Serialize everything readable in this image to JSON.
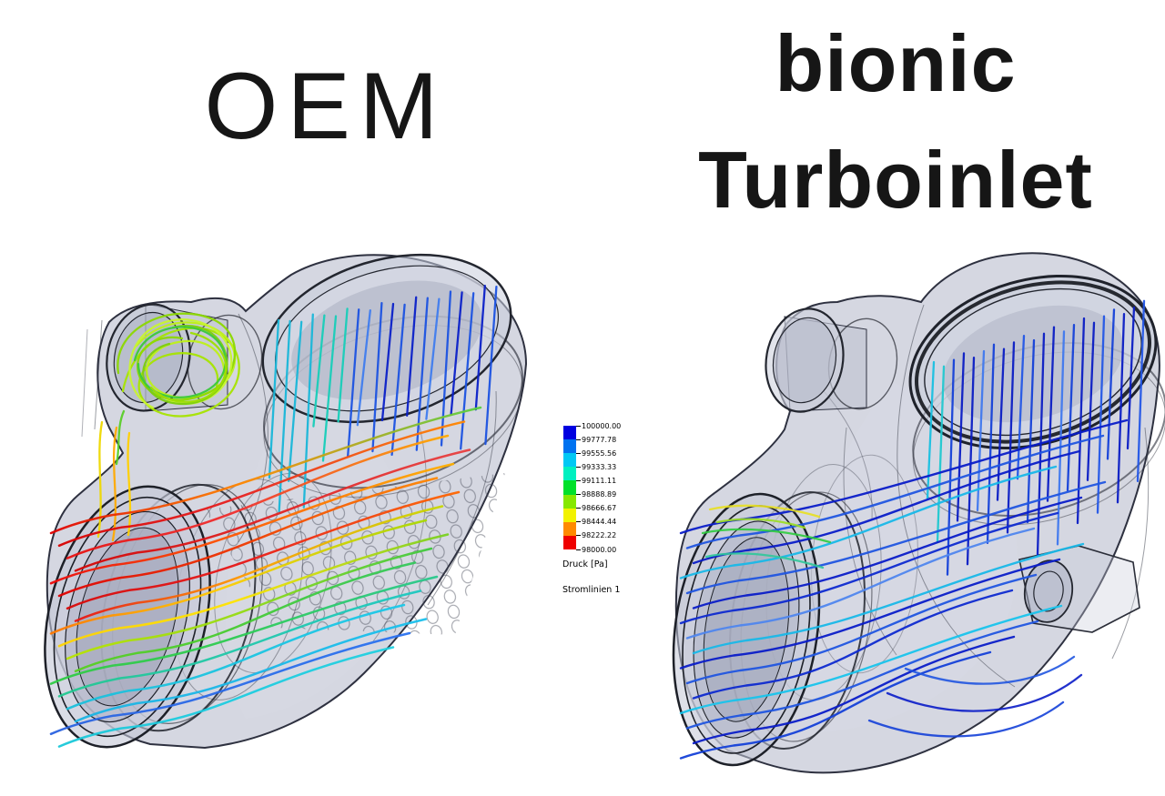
{
  "figure": {
    "background": "#ffffff"
  },
  "left_panel": {
    "title": "OEM"
  },
  "right_panel": {
    "title_line1": "bionic",
    "title_line2": "Turboinlet"
  },
  "legend": {
    "tick_values": [
      "100000.00",
      "99777.78",
      "99555.56",
      "99333.33",
      "99111.11",
      "98888.89",
      "98666.67",
      "98444.44",
      "98222.22",
      "98000.00"
    ],
    "band_colors": [
      "#0000e0",
      "#0072f0",
      "#00c8f4",
      "#00f0c0",
      "#00e02a",
      "#86e800",
      "#f2f200",
      "#ff8a00",
      "#ef0000"
    ],
    "quantity_label": "Druck [Pa]",
    "series_label": "Stromlinien 1"
  }
}
